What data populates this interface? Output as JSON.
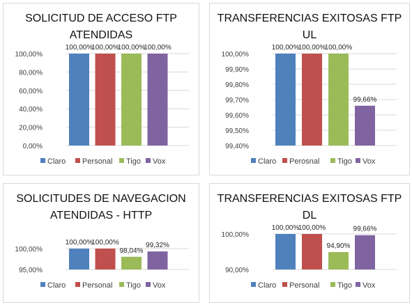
{
  "chart_data": [
    {
      "type": "bar",
      "title": "SOLICITUD DE ACCESO FTP ATENDIDAS",
      "categories": [
        "Claro",
        "Personal",
        "Tigo",
        "Vox"
      ],
      "values": [
        100.0,
        100.0,
        100.0,
        100.0
      ],
      "value_labels": [
        "100,00%",
        "100,00%",
        "100,00%",
        "100,00%"
      ],
      "ylim": [
        0,
        100
      ],
      "yticks": [
        0,
        20,
        40,
        60,
        80,
        100
      ],
      "ytick_labels": [
        "0,00%",
        "20,00%",
        "40,00%",
        "60,00%",
        "80,00%",
        "100,00%"
      ],
      "legend": [
        "Claro",
        "Personal",
        "Tigo",
        "Vox"
      ],
      "colors": [
        "#4f81bd",
        "#c0504d",
        "#9bbb59",
        "#8064a2"
      ],
      "legend_position": "bottom",
      "grid": true
    },
    {
      "type": "bar",
      "title": "TRANSFERENCIAS EXITOSAS FTP UL",
      "categories": [
        "Claro",
        "Perosnal",
        "Tigo",
        "Vox"
      ],
      "values": [
        100.0,
        100.0,
        100.0,
        99.66
      ],
      "value_labels": [
        "100,00%",
        "100,00%",
        "100,00%",
        "99,66%"
      ],
      "ylim": [
        99.4,
        100.0
      ],
      "yticks": [
        99.4,
        99.5,
        99.6,
        99.7,
        99.8,
        99.9,
        100.0
      ],
      "ytick_labels": [
        "99,40%",
        "99,50%",
        "99,60%",
        "99,70%",
        "99,80%",
        "99,90%",
        "100,00%"
      ],
      "legend": [
        "Claro",
        "Perosnal",
        "Tigo",
        "Vox"
      ],
      "colors": [
        "#4f81bd",
        "#c0504d",
        "#9bbb59",
        "#8064a2"
      ],
      "legend_position": "bottom",
      "grid": true
    },
    {
      "type": "bar",
      "title": "SOLICITUDES DE NAVEGACION ATENDIDAS - HTTP",
      "categories": [
        "Claro",
        "Personal",
        "Tigo",
        "Vox"
      ],
      "values": [
        100.0,
        100.0,
        98.04,
        99.32
      ],
      "value_labels": [
        "100,00%",
        "100,00%",
        "98,04%",
        "99,32%"
      ],
      "ylim": [
        95.0,
        100.0
      ],
      "yticks": [
        95.0,
        100.0
      ],
      "ytick_labels": [
        "95,00%",
        "100,00%"
      ],
      "legend": [
        "Claro",
        "Personal",
        "Tigo",
        "Vox"
      ],
      "colors": [
        "#4f81bd",
        "#c0504d",
        "#9bbb59",
        "#8064a2"
      ],
      "legend_position": "bottom",
      "grid": true
    },
    {
      "type": "bar",
      "title": "TRANSFERENCIAS EXITOSAS FTP DL",
      "categories": [
        "Claro",
        "Personal",
        "Tigo",
        "Vox"
      ],
      "values": [
        100.0,
        100.0,
        94.9,
        99.66
      ],
      "value_labels": [
        "100,00%",
        "100,00%",
        "94,90%",
        "99,66%"
      ],
      "ylim": [
        90.0,
        100.0
      ],
      "yticks": [
        90.0,
        100.0
      ],
      "ytick_labels": [
        "90,00%",
        "100,00%"
      ],
      "legend": [
        "Claro",
        "Personal",
        "Tigo",
        "Vox"
      ],
      "colors": [
        "#4f81bd",
        "#c0504d",
        "#9bbb59",
        "#8064a2"
      ],
      "legend_position": "bottom",
      "grid": true
    }
  ]
}
